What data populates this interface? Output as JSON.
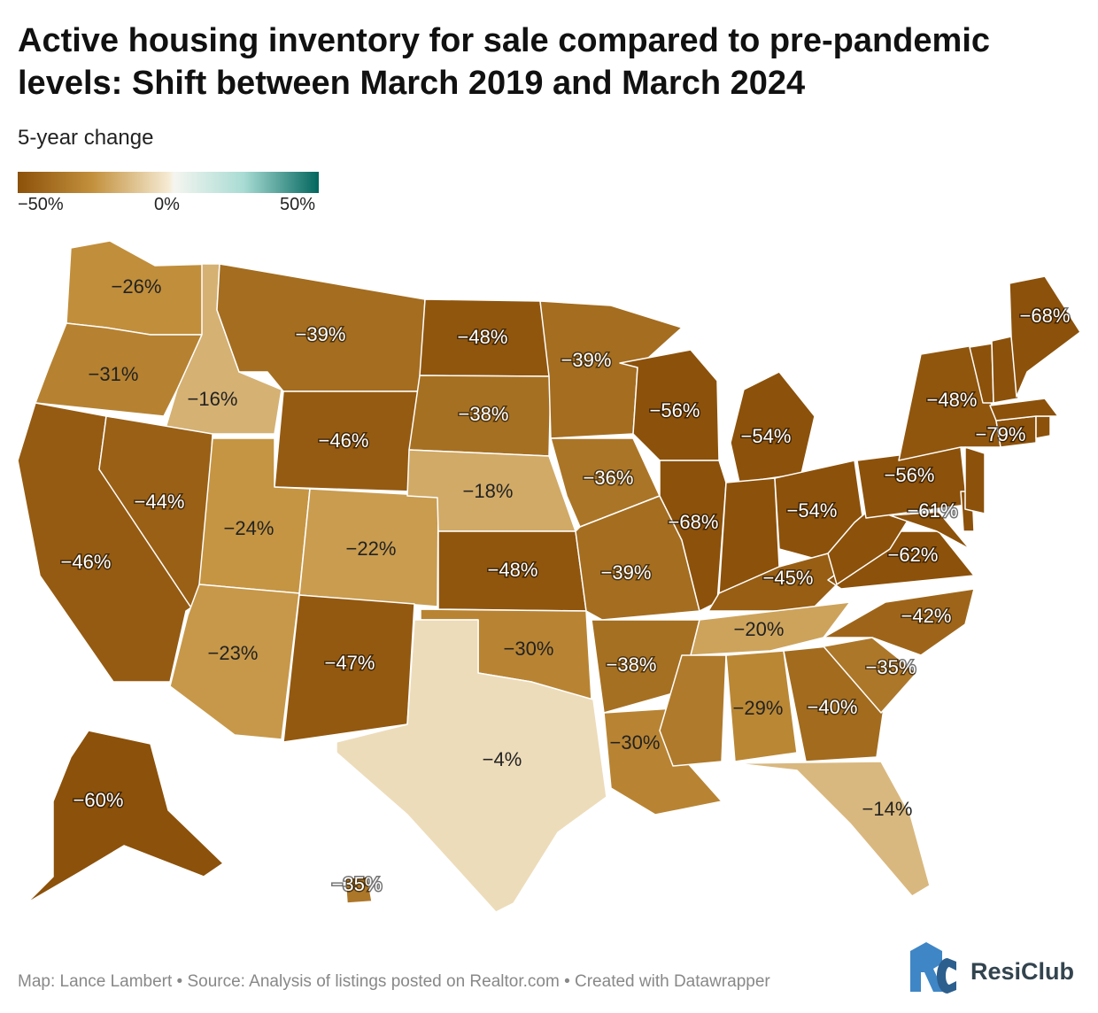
{
  "title_lines": [
    "Active housing inventory for sale compared to pre-pandemic",
    "levels: Shift between March 2019 and March 2024"
  ],
  "subtitle": "5-year change",
  "legend": {
    "scale_colors": [
      "#8c510a",
      "#c3913d",
      "#f5ead2",
      "#f5f5f0",
      "#a9dcd4",
      "#01665e"
    ],
    "ticks": [
      "−50%",
      "0%",
      "50%"
    ],
    "min": -50,
    "max": 50
  },
  "footer": "Map: Lance Lambert • Source: Analysis of listings posted on Realtor.com • Created with Datawrapper",
  "brand": {
    "name": "ResiClub",
    "mark_colors": [
      "#3f86c6",
      "#2c5f8e"
    ]
  },
  "chart_data": {
    "type": "choropleth",
    "title": "Active housing inventory for sale compared to pre-pandemic levels: Shift between March 2019 and March 2024",
    "subtitle": "5-year change",
    "value_unit": "%",
    "states": [
      {
        "code": "WA",
        "value": -26,
        "label": "−26%"
      },
      {
        "code": "OR",
        "value": -31,
        "label": "−31%"
      },
      {
        "code": "CA",
        "value": -46,
        "label": "−46%"
      },
      {
        "code": "ID",
        "value": -16,
        "label": "−16%"
      },
      {
        "code": "NV",
        "value": -44,
        "label": "−44%"
      },
      {
        "code": "MT",
        "value": -39,
        "label": "−39%"
      },
      {
        "code": "WY",
        "value": -46,
        "label": "−46%"
      },
      {
        "code": "UT",
        "value": -24,
        "label": "−24%"
      },
      {
        "code": "AZ",
        "value": -23,
        "label": "−23%"
      },
      {
        "code": "CO",
        "value": -22,
        "label": "−22%"
      },
      {
        "code": "NM",
        "value": -47,
        "label": "−47%"
      },
      {
        "code": "ND",
        "value": -48,
        "label": "−48%"
      },
      {
        "code": "SD",
        "value": -38,
        "label": "−38%"
      },
      {
        "code": "NE",
        "value": -18,
        "label": "−18%"
      },
      {
        "code": "KS",
        "value": -48,
        "label": "−48%"
      },
      {
        "code": "OK",
        "value": -30,
        "label": "−30%"
      },
      {
        "code": "TX",
        "value": -4,
        "label": "−4%"
      },
      {
        "code": "MN",
        "value": -39,
        "label": "−39%"
      },
      {
        "code": "IA",
        "value": -36,
        "label": "−36%"
      },
      {
        "code": "MO",
        "value": -39,
        "label": "−39%"
      },
      {
        "code": "AR",
        "value": -38,
        "label": "−38%"
      },
      {
        "code": "LA",
        "value": -30,
        "label": "−30%"
      },
      {
        "code": "WI",
        "value": -56,
        "label": "−56%"
      },
      {
        "code": "IL",
        "value": -68,
        "label": "−68%"
      },
      {
        "code": "MI",
        "value": -54,
        "label": "−54%"
      },
      {
        "code": "IN",
        "value": -51,
        "label": ""
      },
      {
        "code": "OH",
        "value": -54,
        "label": "−54%"
      },
      {
        "code": "KY",
        "value": -45,
        "label": "−45%"
      },
      {
        "code": "TN",
        "value": -20,
        "label": "−20%"
      },
      {
        "code": "MS",
        "value": -34,
        "label": ""
      },
      {
        "code": "AL",
        "value": -29,
        "label": "−29%"
      },
      {
        "code": "GA",
        "value": -40,
        "label": "−40%"
      },
      {
        "code": "FL",
        "value": -14,
        "label": "−14%"
      },
      {
        "code": "SC",
        "value": -35,
        "label": "−35%"
      },
      {
        "code": "NC",
        "value": -42,
        "label": "−42%"
      },
      {
        "code": "VA",
        "value": -62,
        "label": "−62%"
      },
      {
        "code": "WV",
        "value": -60,
        "label": ""
      },
      {
        "code": "PA",
        "value": -56,
        "label": "−56%"
      },
      {
        "code": "NY",
        "value": -48,
        "label": "−48%"
      },
      {
        "code": "MD",
        "value": -61,
        "label": "−61%"
      },
      {
        "code": "DE",
        "value": -55,
        "label": ""
      },
      {
        "code": "NJ",
        "value": -60,
        "label": ""
      },
      {
        "code": "CT",
        "value": -79,
        "label": "−79%"
      },
      {
        "code": "RI",
        "value": -70,
        "label": ""
      },
      {
        "code": "MA",
        "value": -68,
        "label": ""
      },
      {
        "code": "VT",
        "value": -60,
        "label": ""
      },
      {
        "code": "NH",
        "value": -65,
        "label": ""
      },
      {
        "code": "ME",
        "value": -68,
        "label": "−68%"
      },
      {
        "code": "AK",
        "value": -60,
        "label": "−60%"
      },
      {
        "code": "HI",
        "value": -35,
        "label": "−35%"
      }
    ]
  }
}
